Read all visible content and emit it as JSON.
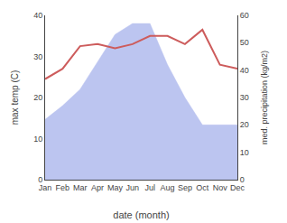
{
  "chart_data": {
    "type": "line",
    "categories": [
      "Jan",
      "Feb",
      "Mar",
      "Apr",
      "May",
      "Jun",
      "Jul",
      "Aug",
      "Sep",
      "Oct",
      "Nov",
      "Dec"
    ],
    "xlabel": "date (month)",
    "ylabel": "max temp (C)",
    "y2label": "med. precipitation (kg/m2)",
    "series": [
      {
        "type": "area",
        "axis": "y2",
        "color": "#bcc5f0",
        "values": [
          22,
          27,
          33,
          43,
          53,
          57,
          57,
          42,
          30,
          20,
          20,
          20
        ]
      },
      {
        "type": "line",
        "color": "#cd5c5c",
        "values": [
          24.5,
          27.0,
          32.5,
          33.0,
          32.0,
          33.0,
          35.0,
          35.0,
          33.0,
          36.5,
          28.0,
          27.0
        ]
      }
    ],
    "ylim": [
      0,
      40
    ],
    "yticks": [
      0,
      10,
      20,
      30,
      40
    ],
    "y2lim": [
      0,
      60
    ],
    "y2ticks": [
      0,
      10,
      20,
      30,
      40,
      50,
      60
    ],
    "grid": false
  }
}
